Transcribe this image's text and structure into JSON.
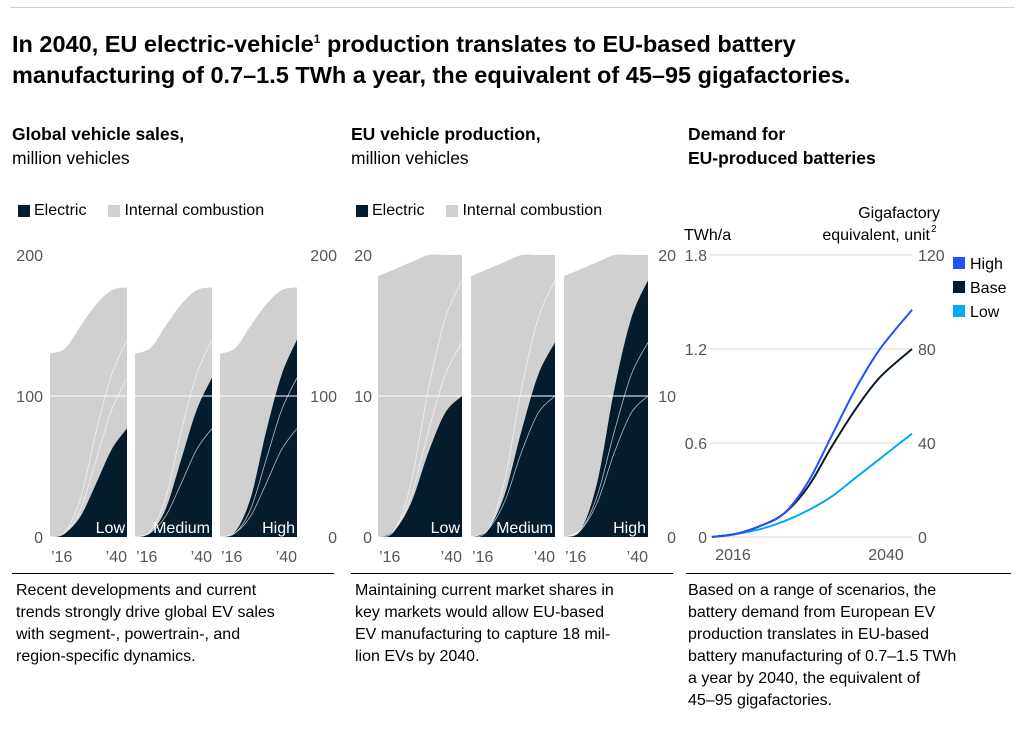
{
  "title_line1": "In 2040, EU electric-vehicle",
  "title_sup": "1",
  "title_line1_rest": " production translates to EU-based battery",
  "title_line2": "manufacturing of 0.7–1.5 TWh a year, the equivalent of 45–95 gigafactories.",
  "panels": {
    "global": {
      "title_bold": "Global vehicle sales,",
      "title_unit": "million vehicles",
      "caption": [
        "Recent developments and current",
        "trends strongly drive global EV sales",
        "with segment-, powertrain-, and",
        "region-specific dynamics."
      ]
    },
    "eu": {
      "title_bold": "EU vehicle production,",
      "title_unit": "million vehicles",
      "caption": [
        "Maintaining current market shares in",
        "key markets would allow EU-based",
        "EV manufacturing to capture 18 mil-",
        "lion EVs by 2040."
      ]
    },
    "demand": {
      "title_line1": "Demand for",
      "title_line2": "EU-produced batteries",
      "left_axis_label": "TWh/a",
      "right_axis_label_1": "Gigafactory",
      "right_axis_label_2": "equivalent, unit",
      "right_axis_sup": "2",
      "caption": [
        "Based on a range of scenarios, the",
        "battery demand from European EV",
        "production translates in EU-based",
        "battery manufacturing of 0.7–1.5 TWh",
        "a year by 2040, the equivalent of",
        "45–95 gigafactories."
      ]
    }
  },
  "legend": {
    "electric": "Electric",
    "ice": "Internal combustion"
  },
  "colors": {
    "electric": "#051c2c",
    "ice": "#d0d0d0",
    "high": "#2251ff",
    "base": "#051c2c",
    "low": "#00a9f4"
  },
  "chart_data": [
    {
      "type": "area",
      "stacked": true,
      "panel": "Global vehicle sales",
      "x": [
        2015,
        2020,
        2025,
        2030,
        2035,
        2040
      ],
      "ylim": [
        0,
        200
      ],
      "yticks": [
        0,
        100,
        200
      ],
      "xtick_labels": [
        "’16",
        "’40"
      ],
      "total": [
        130,
        134,
        150,
        165,
        175,
        177
      ],
      "scenarios": [
        {
          "name": "Low",
          "electric": [
            0,
            3,
            15,
            38,
            62,
            77
          ]
        },
        {
          "name": "Medium",
          "electric": [
            0,
            3,
            20,
            55,
            90,
            113
          ]
        },
        {
          "name": "High",
          "electric": [
            0,
            4,
            28,
            75,
            115,
            140
          ]
        }
      ]
    },
    {
      "type": "area",
      "stacked": true,
      "panel": "EU vehicle production",
      "x": [
        2015,
        2020,
        2025,
        2030,
        2035,
        2040
      ],
      "ylim": [
        0,
        20
      ],
      "yticks": [
        0,
        10,
        20
      ],
      "xtick_labels": [
        "’16",
        "’40"
      ],
      "total": [
        18.5,
        19,
        19.5,
        20,
        20,
        20
      ],
      "scenarios": [
        {
          "name": "Low",
          "electric": [
            0,
            0.5,
            2.5,
            6,
            8.8,
            10
          ]
        },
        {
          "name": "Medium",
          "electric": [
            0,
            0.5,
            3,
            7.5,
            11.5,
            13.8
          ]
        },
        {
          "name": "High",
          "electric": [
            0,
            0.5,
            4,
            10.5,
            15.5,
            18.2
          ]
        }
      ]
    },
    {
      "type": "line",
      "panel": "Demand for EU-produced batteries",
      "x": [
        2015,
        2018,
        2021,
        2024,
        2027,
        2030,
        2033,
        2036,
        2040
      ],
      "ylim": [
        0,
        1.8
      ],
      "yticks": [
        0,
        0.6,
        1.2,
        1.8
      ],
      "y2lim": [
        0,
        120
      ],
      "y2ticks": [
        0,
        40,
        80,
        120
      ],
      "xtick_labels": [
        2016,
        2040
      ],
      "series": [
        {
          "name": "High",
          "color": "#2251ff",
          "values": [
            0,
            0.02,
            0.07,
            0.15,
            0.35,
            0.65,
            0.95,
            1.2,
            1.45
          ]
        },
        {
          "name": "Base",
          "color": "#051c2c",
          "values": [
            0,
            0.02,
            0.07,
            0.15,
            0.32,
            0.58,
            0.82,
            1.02,
            1.2
          ]
        },
        {
          "name": "Low",
          "color": "#00a9f4",
          "values": [
            0,
            0.02,
            0.05,
            0.1,
            0.17,
            0.26,
            0.38,
            0.5,
            0.66
          ]
        }
      ],
      "legend_position": "top-right"
    }
  ]
}
